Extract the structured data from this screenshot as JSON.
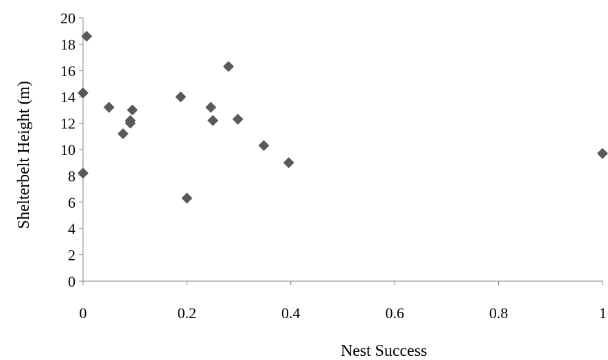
{
  "chart_data": {
    "type": "scatter",
    "title": "",
    "xlabel": "Nest Success",
    "ylabel": "Shelterbelt Height (m)",
    "xlim": [
      0,
      1
    ],
    "ylim": [
      0,
      20
    ],
    "x_ticks": [
      0,
      0.2,
      0.4,
      0.6,
      0.8,
      1
    ],
    "x_tick_labels": [
      "0",
      "0.2",
      "0.4",
      "0.6",
      "0.8",
      "1"
    ],
    "y_ticks": [
      0,
      2,
      4,
      6,
      8,
      10,
      12,
      14,
      16,
      18,
      20
    ],
    "y_tick_labels": [
      "0",
      "2",
      "4",
      "6",
      "8",
      "10",
      "12",
      "14",
      "16",
      "18",
      "20"
    ],
    "grid": false,
    "legend": "none",
    "marker": "diamond",
    "marker_color": "#595959",
    "axis_color": "#808080",
    "points": [
      {
        "x": 0.007,
        "y": 18.6
      },
      {
        "x": 0.0,
        "y": 14.3
      },
      {
        "x": 0.0,
        "y": 8.2
      },
      {
        "x": 0.05,
        "y": 13.2
      },
      {
        "x": 0.077,
        "y": 11.2
      },
      {
        "x": 0.091,
        "y": 12.2
      },
      {
        "x": 0.091,
        "y": 12.0
      },
      {
        "x": 0.095,
        "y": 13.0
      },
      {
        "x": 0.188,
        "y": 14.0
      },
      {
        "x": 0.2,
        "y": 6.3
      },
      {
        "x": 0.246,
        "y": 13.2
      },
      {
        "x": 0.25,
        "y": 12.2
      },
      {
        "x": 0.28,
        "y": 16.3
      },
      {
        "x": 0.298,
        "y": 12.3
      },
      {
        "x": 0.348,
        "y": 10.3
      },
      {
        "x": 0.396,
        "y": 9.0
      },
      {
        "x": 1.0,
        "y": 9.7
      }
    ]
  }
}
